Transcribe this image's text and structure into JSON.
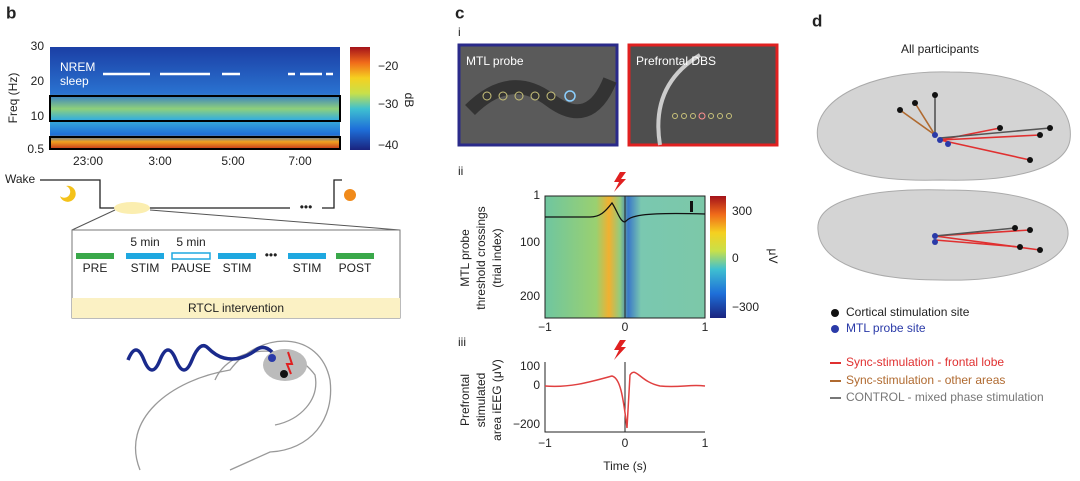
{
  "panel_b": {
    "letter": "b",
    "spectrogram": {
      "y_label": "Freq (Hz)",
      "y_ticks": [
        "30",
        "20",
        "10",
        "0.5"
      ],
      "x_ticks": [
        "23:00",
        "3:00",
        "5:00",
        "7:00"
      ],
      "annotation": [
        "NREM",
        "sleep"
      ],
      "colorbar_ticks": [
        "−20",
        "−30",
        "−40"
      ],
      "colorbar_label": "dB"
    },
    "hypnogram_label": "Wake",
    "protocol": {
      "durations": [
        "5 min",
        "5 min"
      ],
      "blocks": [
        "PRE",
        "STIM",
        "PAUSE",
        "STIM",
        "STIM",
        "POST"
      ],
      "banner": "RTCL intervention"
    }
  },
  "panel_c": {
    "letter": "c",
    "i": {
      "label": "i",
      "images": [
        "MTL probe",
        "Prefrontal DBS"
      ]
    },
    "ii": {
      "label": "ii",
      "y_label": [
        "MTL probe",
        "threshold crossings",
        "(trial index)"
      ],
      "y_ticks": [
        "1",
        "100",
        "200"
      ],
      "x_ticks": [
        "−1",
        "0",
        "1"
      ],
      "colorbar_ticks": [
        "300",
        "0",
        "−300"
      ],
      "colorbar_label": "μV"
    },
    "iii": {
      "label": "iii",
      "y_label": [
        "Prefrontal",
        "stimulated",
        "area iEEG (μV)"
      ],
      "y_ticks": [
        "100",
        "0",
        "−200"
      ],
      "x_ticks": [
        "−1",
        "0",
        "1"
      ],
      "x_label": "Time (s)"
    }
  },
  "panel_d": {
    "letter": "d",
    "title": "All participants",
    "legend": [
      "Cortical stimulation site",
      "MTL probe site",
      "Sync-stimulation - frontal lobe",
      "Sync-stimulation - other areas",
      "CONTROL - mixed phase stimulation"
    ]
  }
}
